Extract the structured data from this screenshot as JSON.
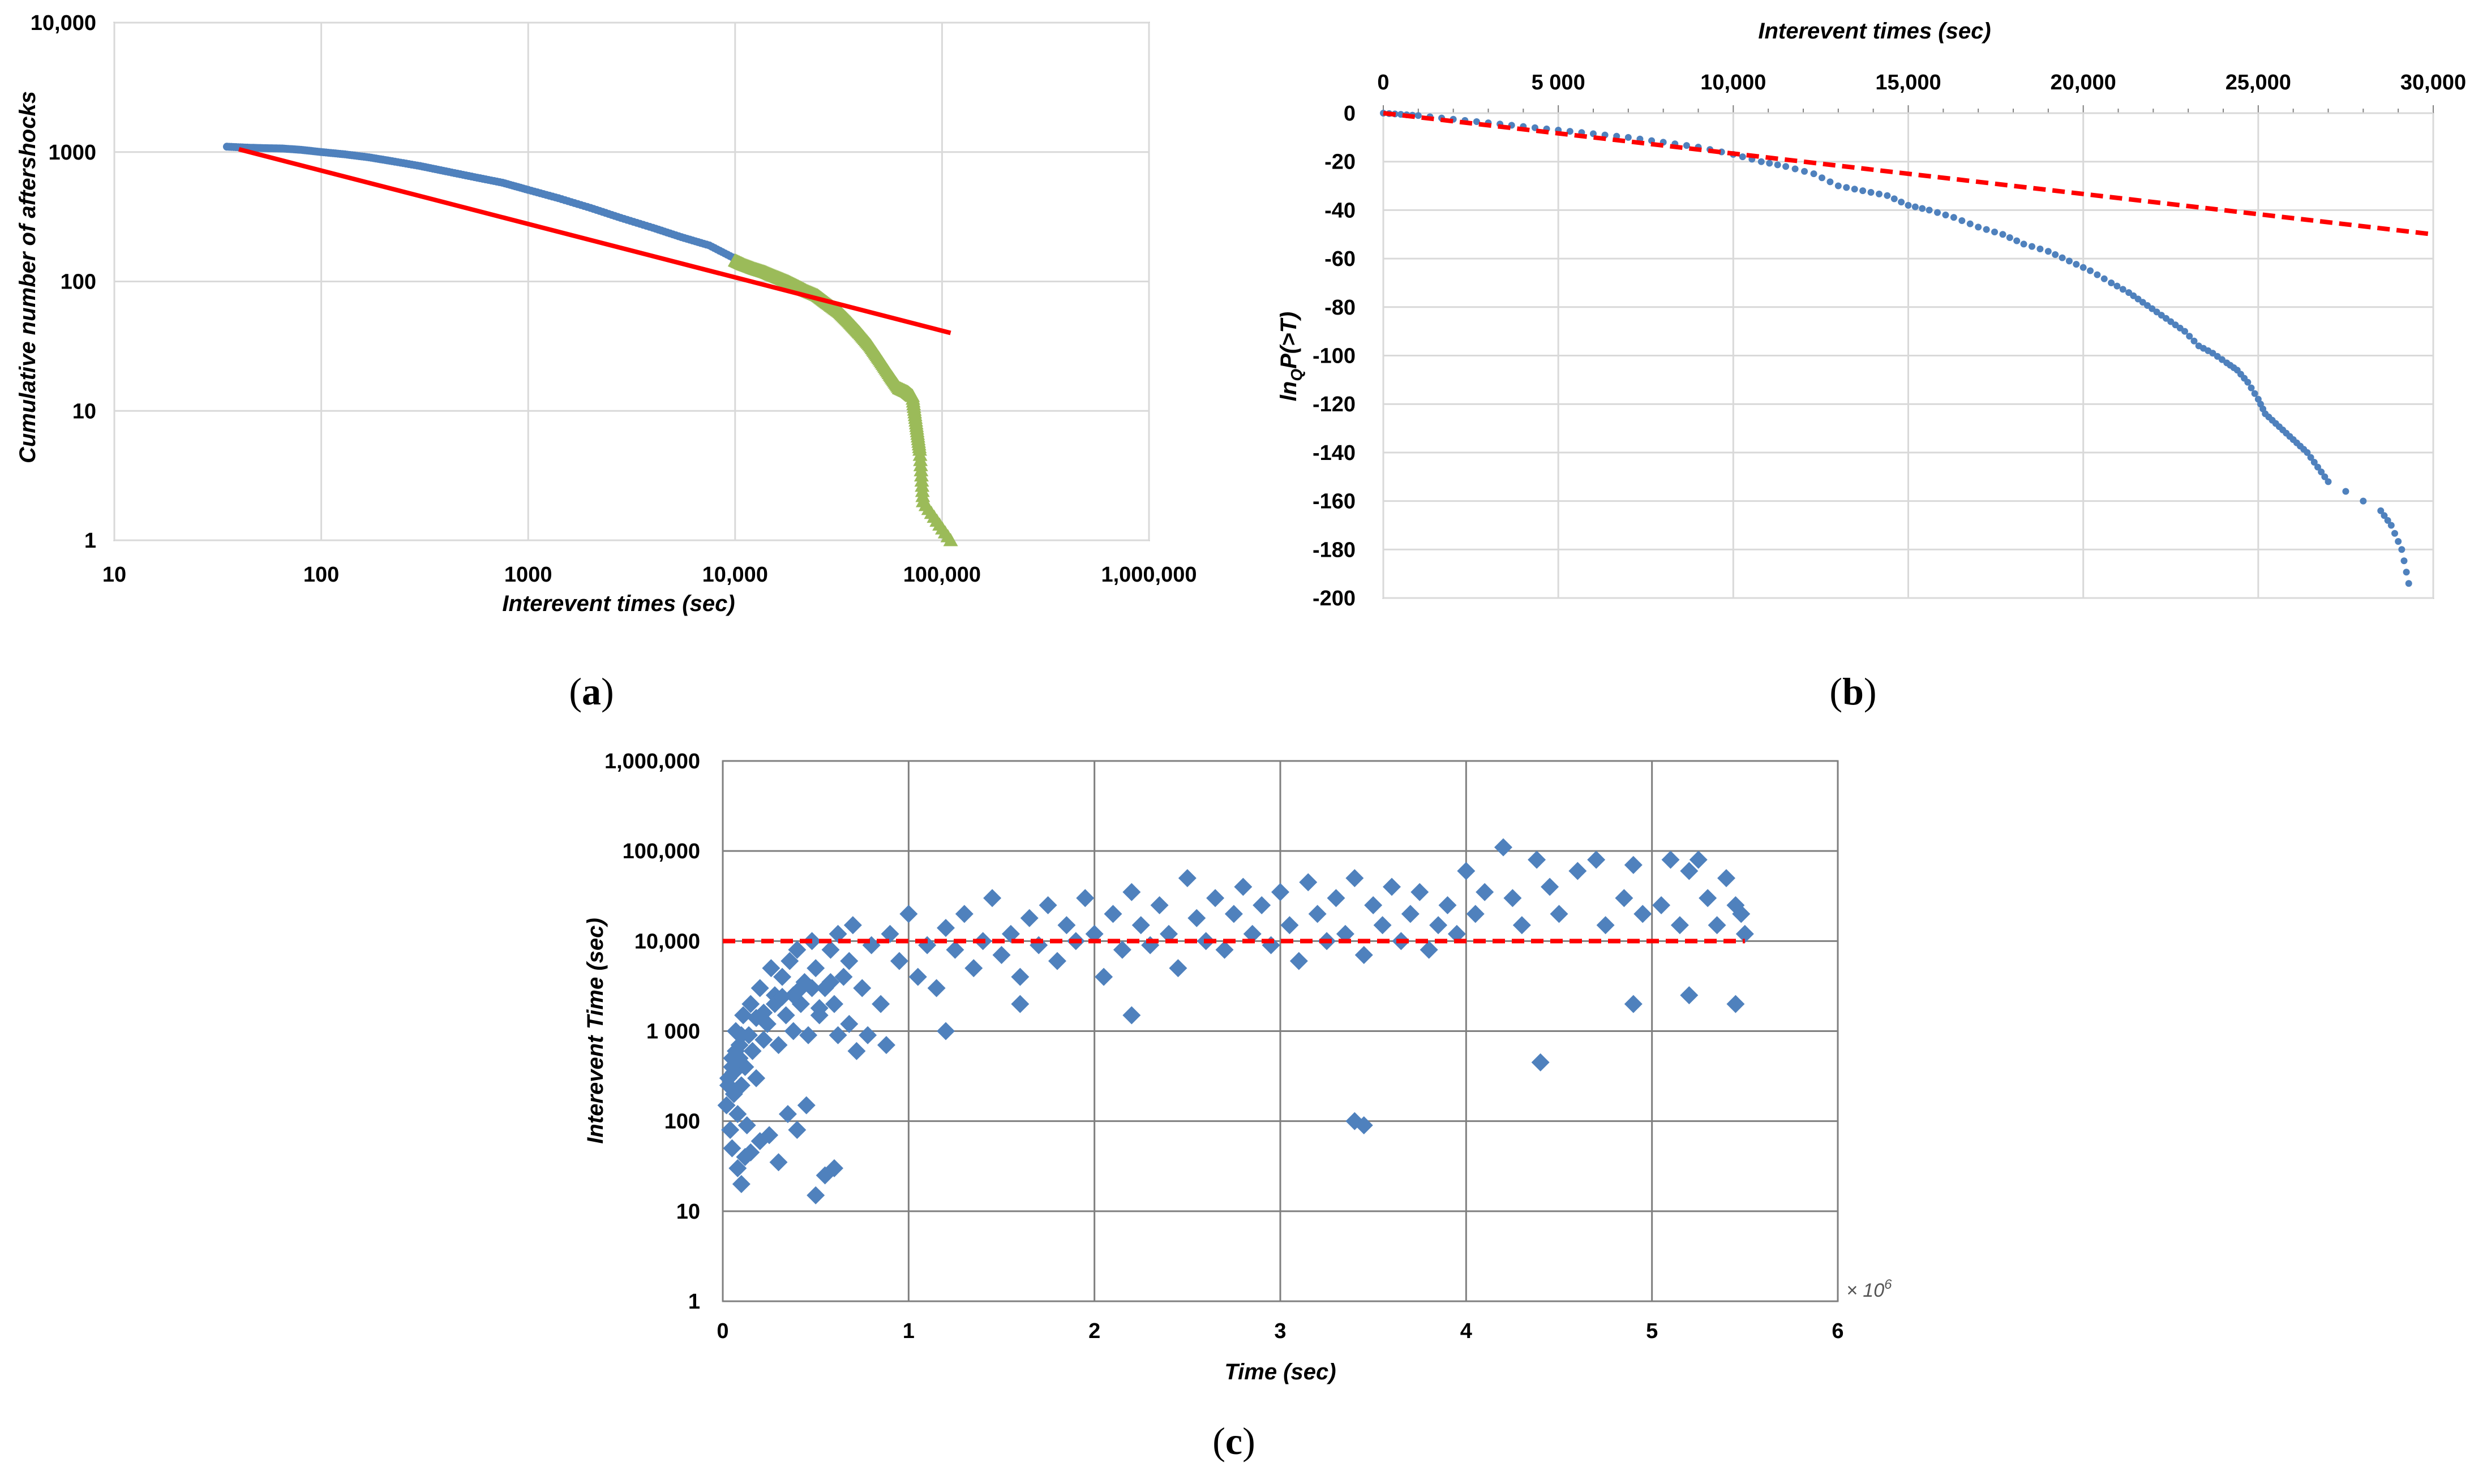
{
  "chart_data": [
    {
      "panel_label": "a",
      "type": "scatter",
      "title": "",
      "xlabel": "Interevent times (sec)",
      "ylabel": "Cumulative number of aftershocks",
      "x_scale": "log",
      "y_scale": "log",
      "xlim": [
        10,
        1000000
      ],
      "ylim": [
        1,
        10000
      ],
      "x_ticks": [
        10,
        100,
        1000,
        10000,
        100000,
        1000000
      ],
      "x_tick_labels": [
        "10",
        "100",
        "1000",
        "10,000",
        "100,000",
        "1,000,000"
      ],
      "y_ticks": [
        1,
        10,
        100,
        1000,
        10000
      ],
      "y_tick_labels": [
        "1",
        "10",
        "100",
        "1000",
        "10,000"
      ],
      "grid": true,
      "series": [
        {
          "marker": "dot",
          "color": "#4f81bd",
          "x": [
            35,
            45,
            55,
            65,
            80,
            100,
            130,
            170,
            220,
            300,
            400,
            550,
            750,
            1000,
            1400,
            2000,
            2800,
            4000,
            5500,
            7500,
            10000
          ],
          "y": [
            1100,
            1080,
            1070,
            1065,
            1040,
            1000,
            960,
            910,
            850,
            780,
            710,
            640,
            580,
            510,
            440,
            370,
            310,
            260,
            220,
            190,
            150
          ]
        },
        {
          "marker": "triangle",
          "color": "#9bbb59",
          "x": [
            10000,
            11000,
            12500,
            14000,
            16000,
            18000,
            20000,
            22000,
            25000,
            28000,
            32000,
            36000,
            40000,
            45000,
            50000,
            56000,
            62000,
            68000,
            72000,
            75000,
            78000,
            81000,
            110000
          ],
          "y": [
            145,
            135,
            125,
            118,
            108,
            100,
            92,
            85,
            78,
            68,
            58,
            48,
            40,
            32,
            25,
            19,
            15,
            14,
            13,
            8,
            5,
            2,
            1
          ]
        },
        {
          "type": "line",
          "color": "#ff0000",
          "x": [
            40,
            110000
          ],
          "y": [
            1050,
            40
          ]
        }
      ]
    },
    {
      "panel_label": "b",
      "type": "scatter",
      "title": "",
      "xlabel": "Interevent times (sec)",
      "ylabel": "ln_q P(>T)",
      "ylabel_main": "ln",
      "ylabel_sub": "Q",
      "ylabel_rest": "P(>T)",
      "xlim": [
        0,
        30000
      ],
      "ylim": [
        -200,
        0
      ],
      "x_ticks": [
        0,
        5000,
        10000,
        15000,
        20000,
        25000,
        30000
      ],
      "x_tick_labels": [
        "0",
        "5 000",
        "10,000",
        "15,000",
        "20,000",
        "25,000",
        "30,000"
      ],
      "y_ticks": [
        0,
        -20,
        -40,
        -60,
        -80,
        -100,
        -120,
        -140,
        -160,
        -180,
        -200
      ],
      "y_tick_labels": [
        "0",
        "-20",
        "-40",
        "-60",
        "-80",
        "-100",
        "-120",
        "-140",
        "-160",
        "-180",
        "-200"
      ],
      "grid": true,
      "series": [
        {
          "marker": "dot",
          "color": "#4f81bd",
          "x": [
            0,
            500,
            1000,
            2000,
            3000,
            4000,
            5000,
            6000,
            7000,
            8000,
            9000,
            10000,
            10800,
            11500,
            12300,
            13000,
            13700,
            14400,
            15000,
            15600,
            16300,
            17000,
            17700,
            18300,
            19000,
            19600,
            20200,
            20800,
            21300,
            21700,
            22100,
            22500,
            22900,
            23300,
            23700,
            24100,
            24400,
            24700,
            25000,
            25200,
            25500,
            25800,
            26100,
            26400,
            26700,
            27000,
            28500,
            28800,
            29100,
            29300
          ],
          "y": [
            0,
            -0.5,
            -1,
            -2.5,
            -4,
            -5.5,
            -7,
            -8.5,
            -10,
            -12,
            -14,
            -17,
            -20,
            -22,
            -25,
            -30,
            -32,
            -34,
            -38,
            -40,
            -43,
            -47,
            -50,
            -54,
            -57,
            -61,
            -65,
            -70,
            -74,
            -78,
            -82,
            -86,
            -90,
            -96,
            -99,
            -103,
            -106,
            -111,
            -118,
            -124,
            -128,
            -132,
            -136,
            -140,
            -146,
            -152,
            -164,
            -170,
            -180,
            -194
          ]
        },
        {
          "type": "line",
          "style": "dashed",
          "color": "#ff0000",
          "x": [
            0,
            30000
          ],
          "y": [
            0,
            -50
          ]
        }
      ]
    },
    {
      "panel_label": "c",
      "type": "scatter",
      "title": "",
      "xlabel": "Time (sec)",
      "ylabel": "Interevent Time (sec)",
      "x_multiplier_label": "× 10",
      "x_multiplier_exp": "6",
      "x_scale": "linear",
      "y_scale": "log",
      "xlim": [
        0,
        6
      ],
      "ylim": [
        1,
        1000000
      ],
      "x_ticks": [
        0,
        1,
        2,
        3,
        4,
        5,
        6
      ],
      "x_tick_labels": [
        "0",
        "1",
        "2",
        "3",
        "4",
        "5",
        "6"
      ],
      "y_ticks": [
        1,
        10,
        100,
        1000,
        10000,
        100000,
        1000000
      ],
      "y_tick_labels": [
        "1",
        "10",
        "100",
        "1 000",
        "10,000",
        "100,000",
        "1,000,000"
      ],
      "grid": true,
      "series": [
        {
          "marker": "diamond",
          "color": "#4f81bd",
          "x": [
            0.02,
            0.03,
            0.04,
            0.05,
            0.06,
            0.07,
            0.08,
            0.09,
            0.1,
            0.11,
            0.12,
            0.13,
            0.15,
            0.16,
            0.18,
            0.2,
            0.22,
            0.24,
            0.26,
            0.28,
            0.3,
            0.32,
            0.34,
            0.36,
            0.38,
            0.4,
            0.42,
            0.44,
            0.46,
            0.48,
            0.5,
            0.52,
            0.55,
            0.58,
            0.6,
            0.62,
            0.65,
            0.68,
            0.7,
            0.75,
            0.8,
            0.85,
            0.9,
            0.95,
            1.0,
            1.05,
            1.1,
            1.15,
            1.2,
            1.25,
            1.3,
            1.35,
            1.4,
            1.45,
            1.5,
            1.55,
            1.6,
            1.65,
            1.7,
            1.75,
            1.8,
            1.85,
            1.9,
            1.95,
            2.0,
            2.05,
            2.1,
            2.15,
            2.2,
            2.25,
            2.3,
            2.35,
            2.4,
            2.45,
            2.5,
            2.55,
            2.6,
            2.65,
            2.7,
            2.75,
            2.8,
            2.85,
            2.9,
            2.95,
            3.0,
            3.05,
            3.1,
            3.15,
            3.2,
            3.25,
            3.3,
            3.35,
            3.4,
            3.45,
            3.5,
            3.55,
            3.6,
            3.65,
            3.7,
            3.75,
            3.8,
            3.85,
            3.9,
            3.95,
            4.0,
            4.05,
            4.1,
            4.2,
            4.25,
            4.3,
            4.38,
            4.45,
            4.5,
            4.6,
            4.7,
            4.75,
            4.85,
            4.9,
            4.95,
            5.05,
            5.1,
            5.15,
            5.2,
            5.25,
            5.3,
            5.35,
            5.4,
            5.45,
            5.48,
            5.5,
            0.05,
            0.08,
            0.12,
            0.2,
            0.3,
            0.4,
            0.5,
            0.55,
            0.6,
            0.1,
            0.15,
            0.25,
            0.35,
            0.45,
            0.05,
            0.07,
            0.1,
            0.18,
            0.28,
            0.38,
            0.48,
            0.58,
            0.68,
            0.78,
            0.88,
            1.2,
            1.6,
            2.2,
            3.4,
            3.45,
            4.4,
            4.9,
            5.2,
            5.45,
            0.03,
            0.06,
            0.09,
            0.14,
            0.22,
            0.32,
            0.42,
            0.52,
            0.62,
            0.72
          ],
          "y": [
            150,
            300,
            80,
            500,
            200,
            1000,
            120,
            700,
            250,
            1500,
            400,
            90,
            2000,
            600,
            300,
            3000,
            800,
            1200,
            5000,
            2500,
            700,
            4000,
            1500,
            6000,
            1000,
            8000,
            2000,
            3500,
            900,
            10000,
            5000,
            1500,
            3000,
            8000,
            2000,
            12000,
            4000,
            6000,
            15000,
            3000,
            9000,
            2000,
            12000,
            6000,
            20000,
            4000,
            9000,
            3000,
            14000,
            8000,
            20000,
            5000,
            10000,
            30000,
            7000,
            12000,
            4000,
            18000,
            9000,
            25000,
            6000,
            15000,
            10000,
            30000,
            12000,
            4000,
            20000,
            8000,
            35000,
            15000,
            9000,
            25000,
            12000,
            5000,
            50000,
            18000,
            10000,
            30000,
            8000,
            20000,
            40000,
            12000,
            25000,
            9000,
            35000,
            15000,
            6000,
            45000,
            20000,
            10000,
            30000,
            12000,
            50000,
            7000,
            25000,
            15000,
            40000,
            10000,
            20000,
            35000,
            8000,
            15000,
            25000,
            12000,
            60000,
            20000,
            35000,
            110000,
            30000,
            15000,
            80000,
            40000,
            20000,
            60000,
            80000,
            15000,
            30000,
            70000,
            20000,
            25000,
            80000,
            15000,
            60000,
            80000,
            30000,
            15000,
            50000,
            25000,
            20000,
            12000,
            50,
            30,
            40,
            60,
            35,
            80,
            15,
            25,
            30,
            20,
            45,
            70,
            120,
            150,
            400,
            600,
            900,
            1400,
            2000,
            2500,
            3000,
            3500,
            1200,
            900,
            700,
            1000,
            2000,
            1500,
            100,
            90,
            450,
            2000,
            2500,
            2000,
            250,
            350,
            500,
            900,
            1600,
            2400,
            3000,
            1800,
            900,
            600
          ]
        },
        {
          "type": "line",
          "style": "dashed",
          "color": "#ff0000",
          "x": [
            0,
            5.5
          ],
          "y": [
            10000,
            10000
          ]
        }
      ]
    }
  ]
}
